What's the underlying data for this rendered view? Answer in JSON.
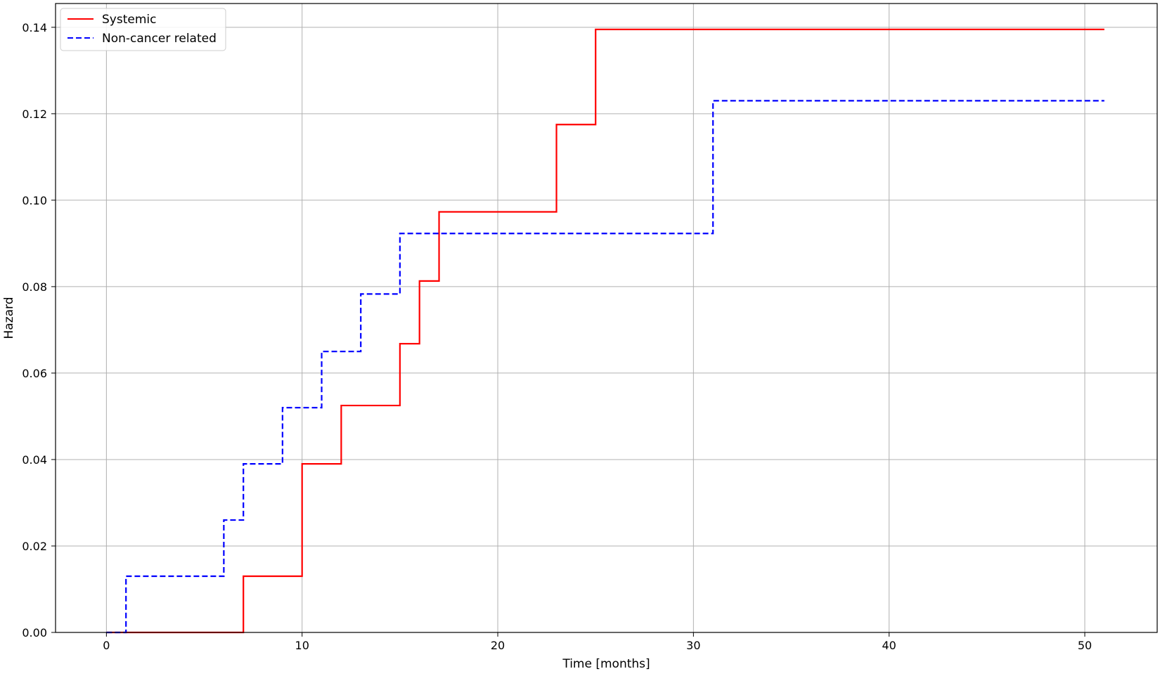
{
  "chart_data": {
    "type": "line",
    "step": "post",
    "title": "",
    "xlabel": "Time [months]",
    "ylabel": "Hazard",
    "xlim": [
      -2.6,
      53.7
    ],
    "ylim": [
      0.0,
      0.1455
    ],
    "xticks": [
      0,
      10,
      20,
      30,
      40,
      50
    ],
    "xtick_labels": [
      "0",
      "10",
      "20",
      "30",
      "40",
      "50"
    ],
    "yticks": [
      0.0,
      0.02,
      0.04,
      0.06,
      0.08,
      0.1,
      0.12,
      0.14
    ],
    "ytick_labels": [
      "0.00",
      "0.02",
      "0.04",
      "0.06",
      "0.08",
      "0.10",
      "0.12",
      "0.14"
    ],
    "grid": true,
    "legend": "top-left",
    "series": [
      {
        "name": "Systemic",
        "color": "#ff0000",
        "style": "solid",
        "x": [
          0,
          7,
          10,
          12,
          15,
          16,
          17,
          23,
          25,
          51
        ],
        "y": [
          0.0,
          0.013,
          0.039,
          0.0525,
          0.0668,
          0.0813,
          0.0973,
          0.1175,
          0.1395,
          0.1395
        ]
      },
      {
        "name": "Non-cancer related",
        "color": "#0000ff",
        "style": "dashed",
        "x": [
          0,
          1,
          6,
          7,
          9,
          11,
          13,
          15,
          31,
          51
        ],
        "y": [
          0.0,
          0.013,
          0.026,
          0.039,
          0.052,
          0.065,
          0.0783,
          0.0923,
          0.123,
          0.123
        ]
      }
    ]
  }
}
